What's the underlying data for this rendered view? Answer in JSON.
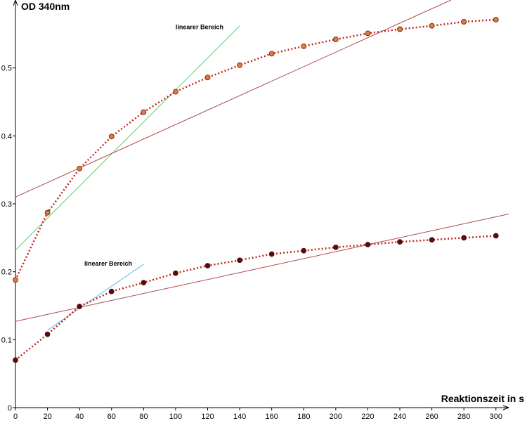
{
  "chart_data": {
    "type": "line",
    "y_label": "OD 340nm",
    "x_label": "Reaktionszeit in s",
    "x": [
      0,
      20,
      40,
      60,
      80,
      100,
      120,
      140,
      160,
      180,
      200,
      220,
      240,
      260,
      280,
      300
    ],
    "series": [
      {
        "color": "#e07b39",
        "line_color": "#c0241c",
        "values": [
          0.188,
          0.287,
          0.352,
          0.399,
          0.435,
          0.465,
          0.486,
          0.504,
          0.521,
          0.532,
          0.542,
          0.551,
          0.557,
          0.562,
          0.568,
          0.571
        ]
      },
      {
        "color": "#5a0a0a",
        "line_color": "#c0241c",
        "values": [
          0.07,
          0.108,
          0.149,
          0.171,
          0.184,
          0.198,
          0.209,
          0.217,
          0.226,
          0.231,
          0.236,
          0.24,
          0.244,
          0.247,
          0.25,
          0.253
        ]
      }
    ],
    "reference_lines": [
      {
        "color": "#66cc66",
        "x": [
          0,
          140
        ],
        "values": [
          0.232,
          0.562
        ]
      },
      {
        "color": "#b04848",
        "x": [
          0,
          272
        ],
        "values": [
          0.31,
          0.6
        ]
      },
      {
        "color": "#55bbdd",
        "x": [
          20,
          80
        ],
        "values": [
          0.114,
          0.211
        ]
      },
      {
        "color": "#b04848",
        "x": [
          0,
          308
        ],
        "values": [
          0.127,
          0.285
        ]
      }
    ],
    "annotations": [
      {
        "text": "linearer Bereich",
        "x": 100,
        "y": 0.557
      },
      {
        "text": "linearer Bereich",
        "x": 43,
        "y": 0.209
      }
    ],
    "xlim": [
      0,
      308
    ],
    "ylim": [
      0,
      0.6
    ],
    "xticks": [
      0,
      20,
      40,
      60,
      80,
      100,
      120,
      140,
      160,
      180,
      200,
      220,
      240,
      260,
      280,
      300
    ],
    "yticks": [
      0,
      0.1,
      0.2,
      0.3,
      0.4,
      0.5
    ]
  }
}
